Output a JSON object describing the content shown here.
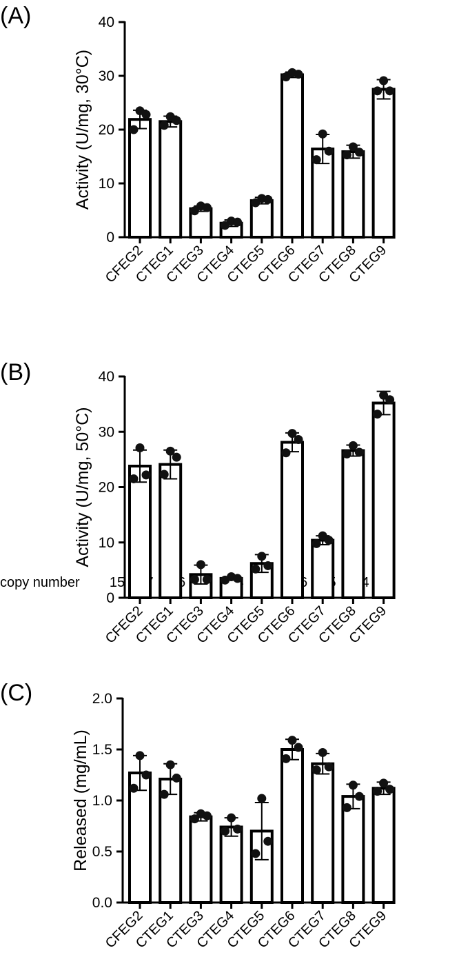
{
  "chart_data": [
    {
      "type": "bar",
      "panel_label": "(A)",
      "ylabel": "Activity (U/mg, 30°C)",
      "ylim": [
        0,
        40
      ],
      "yticks": [
        0,
        10,
        20,
        30,
        40
      ],
      "categories": [
        "CFEG2",
        "CTEG1",
        "CTEG3",
        "CTEG4",
        "CTEG5",
        "CTEG6",
        "CTEG7",
        "CTEG8",
        "CTEG9"
      ],
      "values": [
        21.9,
        21.5,
        5.3,
        2.6,
        6.8,
        30.2,
        16.4,
        15.9,
        27.5
      ],
      "errors": [
        1.7,
        1.0,
        0.5,
        0.6,
        0.6,
        0.5,
        2.7,
        1.2,
        1.8
      ],
      "points": [
        [
          23.5,
          22.8,
          20.0
        ],
        [
          22.4,
          21.7,
          20.8
        ],
        [
          5.8,
          5.5,
          4.9
        ],
        [
          3.0,
          2.8,
          2.2
        ],
        [
          7.2,
          7.0,
          6.4
        ],
        [
          30.6,
          30.3,
          29.8
        ],
        [
          19.2,
          16.0,
          14.4
        ],
        [
          16.8,
          15.8,
          15.3
        ],
        [
          29.1,
          27.2,
          27.2
        ]
      ],
      "grid": false,
      "extra_row": {
        "label": "copy number",
        "values": [
          "15",
          "7",
          "16",
          "5",
          "4",
          "4",
          "16",
          "5",
          "4"
        ]
      }
    },
    {
      "type": "bar",
      "panel_label": "(B)",
      "ylabel": "Activity (U/mg, 50°C)",
      "ylim": [
        0,
        40
      ],
      "yticks": [
        0,
        10,
        20,
        30,
        40
      ],
      "categories": [
        "CFEG2",
        "CTEG1",
        "CTEG3",
        "CTEG4",
        "CTEG5",
        "CTEG6",
        "CTEG7",
        "CTEG8",
        "CTEG9"
      ],
      "values": [
        23.8,
        24.1,
        4.2,
        3.5,
        6.2,
        28.1,
        10.4,
        26.6,
        35.2
      ],
      "errors": [
        2.9,
        2.6,
        1.7,
        0.3,
        1.6,
        1.7,
        0.8,
        1.0,
        2.1
      ],
      "points": [
        [
          27.1,
          22.2,
          21.5
        ],
        [
          26.5,
          25.4,
          22.3
        ],
        [
          6.0,
          3.3,
          3.3
        ],
        [
          3.8,
          3.5,
          3.2
        ],
        [
          7.5,
          5.8,
          5.2
        ],
        [
          29.7,
          28.6,
          26.2
        ],
        [
          11.2,
          10.4,
          9.8
        ],
        [
          27.5,
          26.3,
          26.0
        ],
        [
          36.6,
          35.8,
          33.2
        ]
      ],
      "grid": false
    },
    {
      "type": "bar",
      "panel_label": "(C)",
      "ylabel": "Released (mg/mL)",
      "ylim": [
        0,
        2.0
      ],
      "yticks": [
        "0.0",
        "0.5",
        "1.0",
        "1.5",
        "2.0"
      ],
      "categories": [
        "CFEG2",
        "CTEG1",
        "CTEG3",
        "CTEG4",
        "CTEG5",
        "CTEG6",
        "CTEG7",
        "CTEG8",
        "CTEG9"
      ],
      "values": [
        1.27,
        1.21,
        0.84,
        0.74,
        0.7,
        1.5,
        1.36,
        1.04,
        1.12
      ],
      "errors": [
        0.17,
        0.15,
        0.04,
        0.09,
        0.28,
        0.1,
        0.1,
        0.12,
        0.06
      ],
      "points": [
        [
          1.44,
          1.25,
          1.12
        ],
        [
          1.35,
          1.22,
          1.06
        ],
        [
          0.87,
          0.85,
          0.82
        ],
        [
          0.83,
          0.72,
          0.7
        ],
        [
          1.02,
          0.6,
          0.48
        ],
        [
          1.59,
          1.52,
          1.41
        ],
        [
          1.47,
          1.33,
          1.3
        ],
        [
          1.15,
          1.04,
          0.93
        ],
        [
          1.17,
          1.11,
          1.09
        ]
      ],
      "grid": false
    }
  ]
}
